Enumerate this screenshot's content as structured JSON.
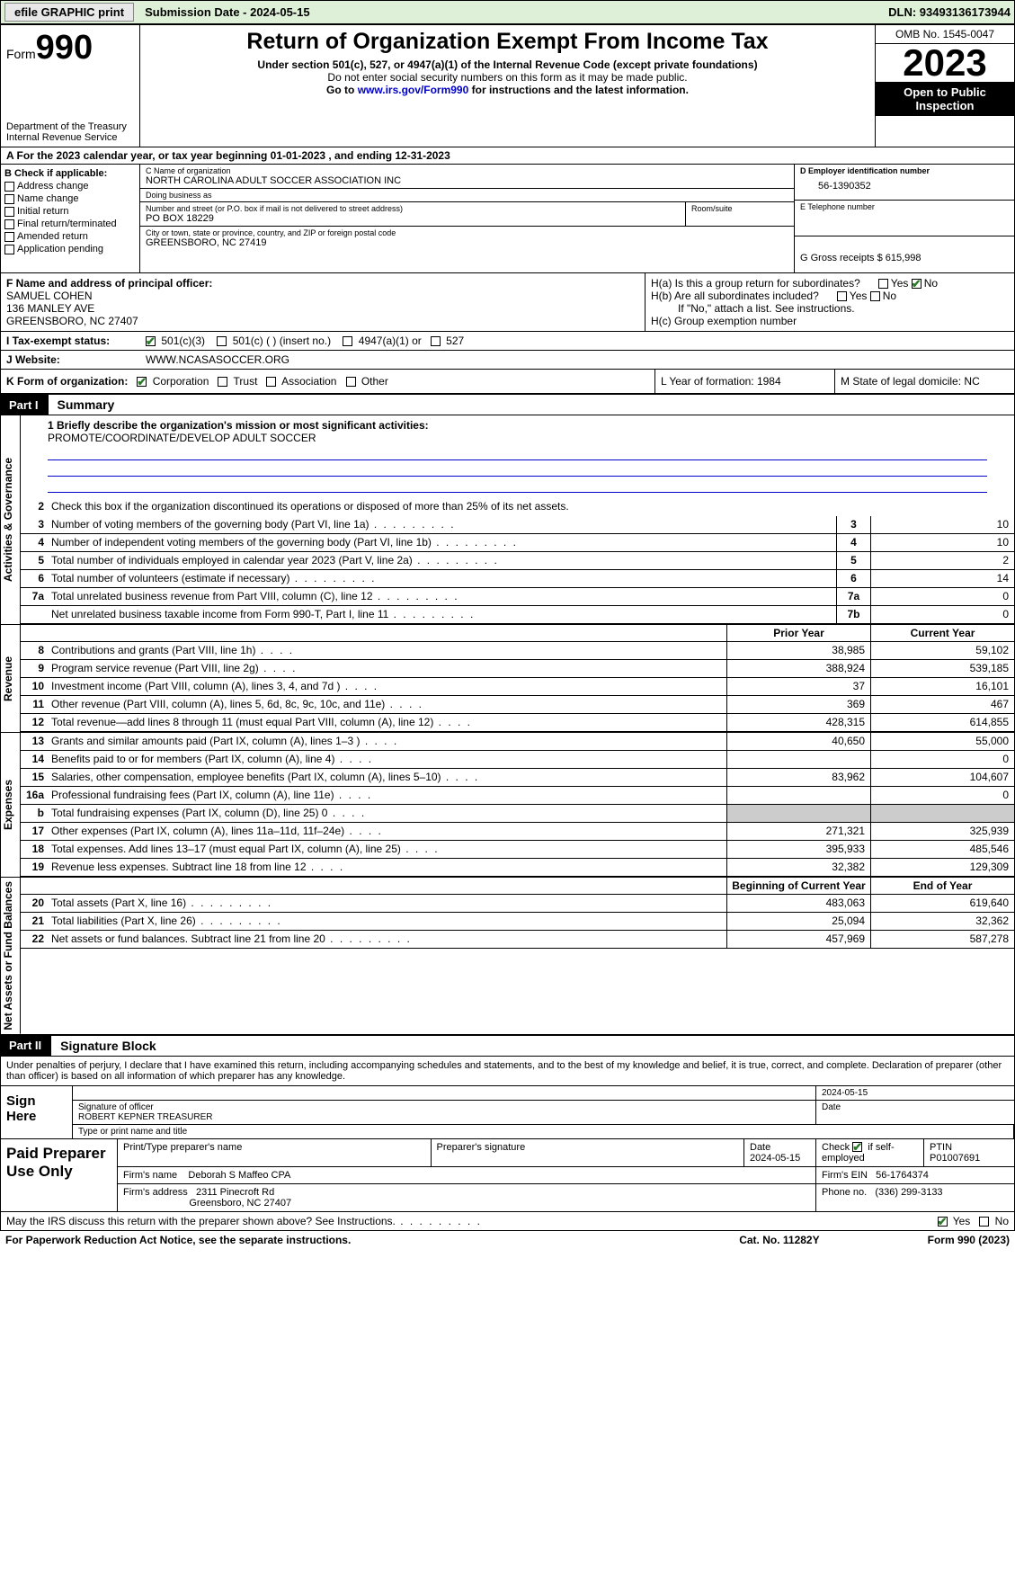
{
  "topbar": {
    "efile_btn": "efile GRAPHIC print",
    "submission_label": "Submission Date - 2024-05-15",
    "dln": "DLN: 93493136173944"
  },
  "header": {
    "form_label": "Form",
    "form_num": "990",
    "dept": "Department of the Treasury Internal Revenue Service",
    "title": "Return of Organization Exempt From Income Tax",
    "sub1": "Under section 501(c), 527, or 4947(a)(1) of the Internal Revenue Code (except private foundations)",
    "sub2": "Do not enter social security numbers on this form as it may be made public.",
    "sub3_pre": "Go to ",
    "sub3_link": "www.irs.gov/Form990",
    "sub3_post": " for instructions and the latest information.",
    "omb": "OMB No. 1545-0047",
    "year": "2023",
    "open_public": "Open to Public Inspection"
  },
  "row_a": "A For the 2023 calendar year, or tax year beginning 01-01-2023   , and ending 12-31-2023",
  "section_b": {
    "header": "B Check if applicable:",
    "items": [
      "Address change",
      "Name change",
      "Initial return",
      "Final return/terminated",
      "Amended return",
      "Application pending"
    ]
  },
  "section_c": {
    "name_lbl": "C Name of organization",
    "name": "NORTH CAROLINA ADULT SOCCER ASSOCIATION INC",
    "dba_lbl": "Doing business as",
    "dba": "",
    "street_lbl": "Number and street (or P.O. box if mail is not delivered to street address)",
    "street": "PO BOX 18229",
    "room_lbl": "Room/suite",
    "city_lbl": "City or town, state or province, country, and ZIP or foreign postal code",
    "city": "GREENSBORO, NC  27419"
  },
  "section_d": {
    "ein_lbl": "D Employer identification number",
    "ein": "56-1390352",
    "phone_lbl": "E Telephone number",
    "phone": "",
    "receipts_lbl": "G Gross receipts $ 615,998"
  },
  "section_f": {
    "lbl": "F  Name and address of principal officer:",
    "name": "SAMUEL COHEN",
    "addr1": "136 MANLEY AVE",
    "addr2": "GREENSBORO, NC  27407"
  },
  "section_h": {
    "ha": "H(a)  Is this a group return for subordinates?",
    "hb": "H(b)  Are all subordinates included?",
    "hb_note": "If \"No,\" attach a list. See instructions.",
    "hc": "H(c)  Group exemption number"
  },
  "tax_exempt": {
    "lbl": "I   Tax-exempt status:",
    "opt1": "501(c)(3)",
    "opt2": "501(c) (  ) (insert no.)",
    "opt3": "4947(a)(1) or",
    "opt4": "527"
  },
  "website": {
    "lbl": "J   Website:",
    "val": "WWW.NCASASOCCER.ORG"
  },
  "k_org": {
    "lbl": "K Form of organization:",
    "opts": [
      "Corporation",
      "Trust",
      "Association",
      "Other"
    ],
    "l": "L Year of formation: 1984",
    "m": "M State of legal domicile: NC"
  },
  "part1": {
    "num": "Part I",
    "title": "Summary"
  },
  "vtabs": {
    "gov": "Activities & Governance",
    "rev": "Revenue",
    "exp": "Expenses",
    "net": "Net Assets or Fund Balances"
  },
  "mission": {
    "lbl": "1  Briefly describe the organization's mission or most significant activities:",
    "text": "PROMOTE/COORDINATE/DEVELOP ADULT SOCCER"
  },
  "line2": "Check this box       if the organization discontinued its operations or disposed of more than 25% of its net assets.",
  "gov_rows": [
    {
      "n": "3",
      "t": "Number of voting members of the governing body (Part VI, line 1a)",
      "b": "3",
      "v": "10"
    },
    {
      "n": "4",
      "t": "Number of independent voting members of the governing body (Part VI, line 1b)",
      "b": "4",
      "v": "10"
    },
    {
      "n": "5",
      "t": "Total number of individuals employed in calendar year 2023 (Part V, line 2a)",
      "b": "5",
      "v": "2"
    },
    {
      "n": "6",
      "t": "Total number of volunteers (estimate if necessary)",
      "b": "6",
      "v": "14"
    },
    {
      "n": "7a",
      "t": "Total unrelated business revenue from Part VIII, column (C), line 12",
      "b": "7a",
      "v": "0"
    },
    {
      "n": "",
      "t": "Net unrelated business taxable income from Form 990-T, Part I, line 11",
      "b": "7b",
      "v": "0"
    }
  ],
  "col_headers": {
    "prior": "Prior Year",
    "current": "Current Year",
    "beg": "Beginning of Current Year",
    "end": "End of Year"
  },
  "rev_rows": [
    {
      "n": "8",
      "t": "Contributions and grants (Part VIII, line 1h)",
      "p": "38,985",
      "c": "59,102"
    },
    {
      "n": "9",
      "t": "Program service revenue (Part VIII, line 2g)",
      "p": "388,924",
      "c": "539,185"
    },
    {
      "n": "10",
      "t": "Investment income (Part VIII, column (A), lines 3, 4, and 7d )",
      "p": "37",
      "c": "16,101"
    },
    {
      "n": "11",
      "t": "Other revenue (Part VIII, column (A), lines 5, 6d, 8c, 9c, 10c, and 11e)",
      "p": "369",
      "c": "467"
    },
    {
      "n": "12",
      "t": "Total revenue—add lines 8 through 11 (must equal Part VIII, column (A), line 12)",
      "p": "428,315",
      "c": "614,855"
    }
  ],
  "exp_rows": [
    {
      "n": "13",
      "t": "Grants and similar amounts paid (Part IX, column (A), lines 1–3 )",
      "p": "40,650",
      "c": "55,000"
    },
    {
      "n": "14",
      "t": "Benefits paid to or for members (Part IX, column (A), line 4)",
      "p": "",
      "c": "0"
    },
    {
      "n": "15",
      "t": "Salaries, other compensation, employee benefits (Part IX, column (A), lines 5–10)",
      "p": "83,962",
      "c": "104,607"
    },
    {
      "n": "16a",
      "t": "Professional fundraising fees (Part IX, column (A), line 11e)",
      "p": "",
      "c": "0"
    },
    {
      "n": "b",
      "t": "Total fundraising expenses (Part IX, column (D), line 25) 0",
      "p": "shaded",
      "c": "shaded"
    },
    {
      "n": "17",
      "t": "Other expenses (Part IX, column (A), lines 11a–11d, 11f–24e)",
      "p": "271,321",
      "c": "325,939"
    },
    {
      "n": "18",
      "t": "Total expenses. Add lines 13–17 (must equal Part IX, column (A), line 25)",
      "p": "395,933",
      "c": "485,546"
    },
    {
      "n": "19",
      "t": "Revenue less expenses. Subtract line 18 from line 12",
      "p": "32,382",
      "c": "129,309"
    }
  ],
  "net_rows": [
    {
      "n": "20",
      "t": "Total assets (Part X, line 16)",
      "p": "483,063",
      "c": "619,640"
    },
    {
      "n": "21",
      "t": "Total liabilities (Part X, line 26)",
      "p": "25,094",
      "c": "32,362"
    },
    {
      "n": "22",
      "t": "Net assets or fund balances. Subtract line 21 from line 20",
      "p": "457,969",
      "c": "587,278"
    }
  ],
  "part2": {
    "num": "Part II",
    "title": "Signature Block"
  },
  "sig_text": "Under penalties of perjury, I declare that I have examined this return, including accompanying schedules and statements, and to the best of my knowledge and belief, it is true, correct, and complete. Declaration of preparer (other than officer) is based on all information of which preparer has any knowledge.",
  "sign_here": "Sign Here",
  "sig": {
    "date": "2024-05-15",
    "officer_lbl": "Signature of officer",
    "officer": "ROBERT KEPNER  TREASURER",
    "type_lbl": "Type or print name and title",
    "date_lbl": "Date"
  },
  "paid": {
    "lbl": "Paid Preparer Use Only",
    "h1": "Print/Type preparer's name",
    "h2": "Preparer's signature",
    "h3": "Date",
    "h3v": "2024-05-15",
    "h4": "Check        if self-employed",
    "h5": "PTIN",
    "h5v": "P01007691",
    "firm_name_lbl": "Firm's name",
    "firm_name": "Deborah S Maffeo CPA",
    "firm_ein_lbl": "Firm's EIN",
    "firm_ein": "56-1764374",
    "firm_addr_lbl": "Firm's address",
    "firm_addr1": "2311 Pinecroft Rd",
    "firm_addr2": "Greensboro, NC  27407",
    "phone_lbl": "Phone no.",
    "phone": "(336) 299-3133"
  },
  "irs_discuss": "May the IRS discuss this return with the preparer shown above? See Instructions.",
  "yes": "Yes",
  "no": "No",
  "footer": {
    "left": "For Paperwork Reduction Act Notice, see the separate instructions.",
    "mid": "Cat. No. 11282Y",
    "right": "Form 990 (2023)"
  }
}
